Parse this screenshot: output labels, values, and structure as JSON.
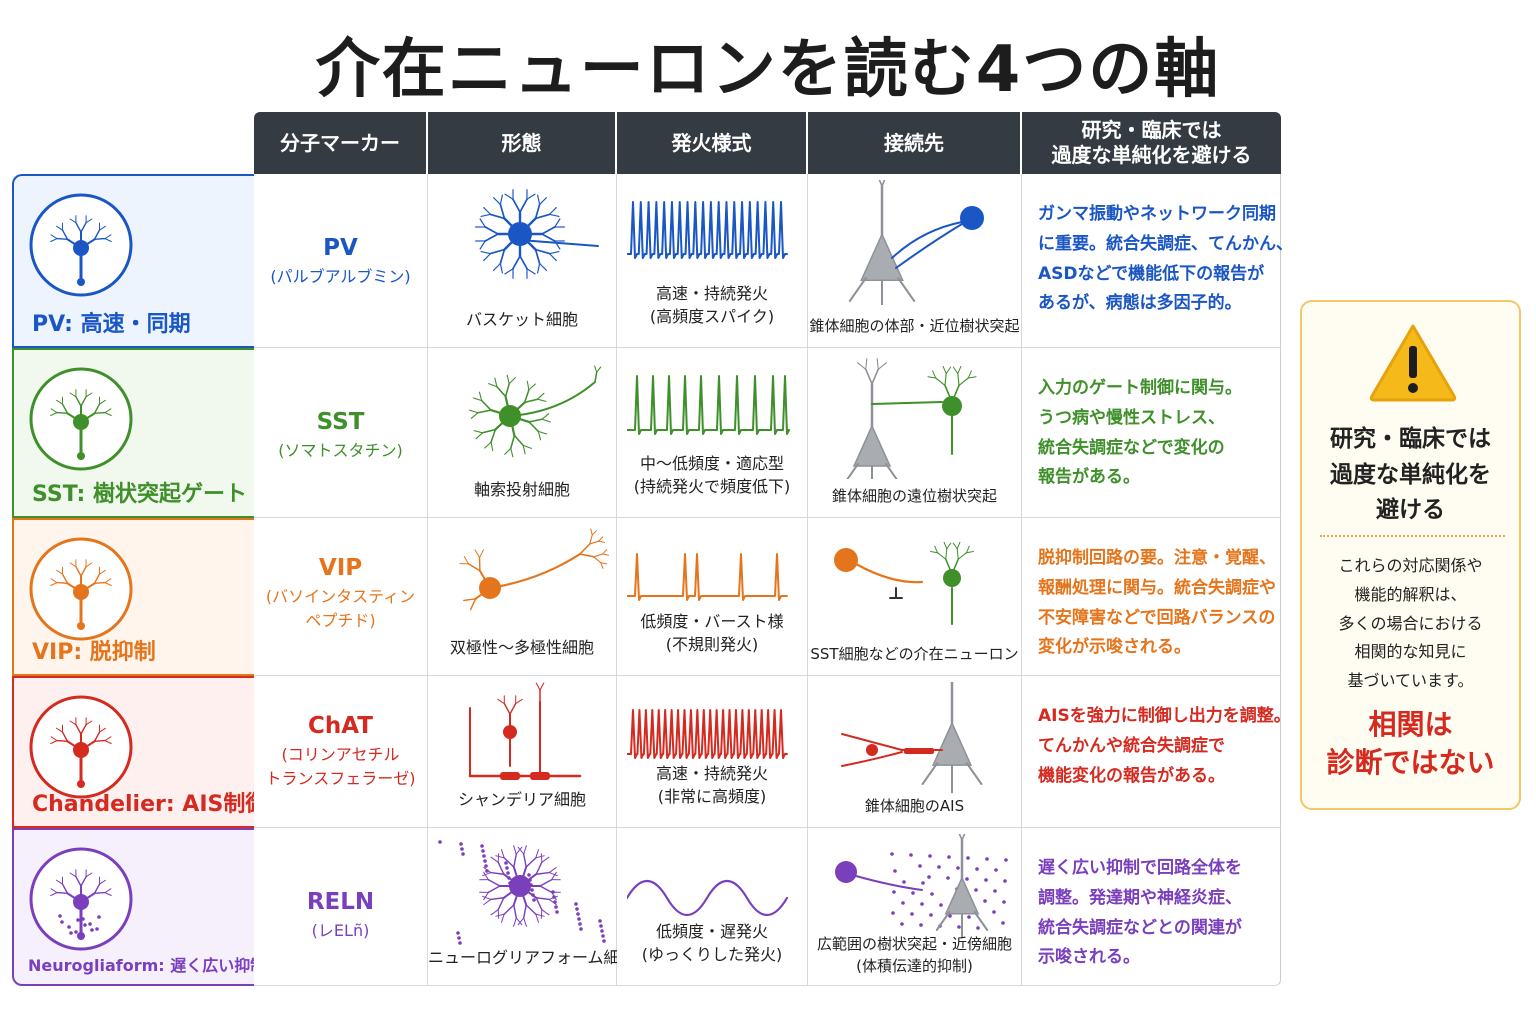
{
  "title": "介在ニューロンを読む4つの軸",
  "headers": [
    "分子マーカー",
    "形態",
    "発火様式",
    "接続先",
    "研究・臨床では\n過度な単純化を避ける"
  ],
  "rows": [
    {
      "label": "PV: 高速・同期",
      "color": "#1a56c4",
      "bg": "#eef4fd",
      "marker": "PV",
      "marker_full": "(パルブアルブミン)",
      "morph_caption": "バスケット細胞",
      "firing_caption": [
        "高速・持続発火",
        "(高頻度スパイク)"
      ],
      "target_caption": [
        "錐体細胞の体部・近位樹状突起"
      ],
      "note": [
        "ガンマ振動やネットワーク同期",
        "に重要。統合失調症、てんかん、",
        "ASDなどで機能低下の報告が",
        "あるが、病態は多因子的。"
      ]
    },
    {
      "label": "SST: 樹状突起ゲート",
      "color": "#3f8f2a",
      "bg": "#f1f8ee",
      "marker": "SST",
      "marker_full": "(ソマトスタチン)",
      "morph_caption": "軸索投射細胞",
      "firing_caption": [
        "中〜低頻度・適応型",
        "(持続発火で頻度低下)"
      ],
      "target_caption": [
        "錐体細胞の遠位樹状突起"
      ],
      "note": [
        "入力のゲート制御に関与。",
        "うつ病や慢性ストレス、",
        "統合失調症などで変化の",
        "報告がある。"
      ]
    },
    {
      "label": "VIP: 脱抑制",
      "color": "#e5751c",
      "bg": "#fff5ec",
      "marker": "VIP",
      "marker_full": "(バソインタスティン\nペプチド)",
      "morph_caption": "双極性〜多極性細胞",
      "firing_caption": [
        "低頻度・バースト様",
        "(不規則発火)"
      ],
      "target_caption": [
        "SST細胞などの介在ニューロン"
      ],
      "note": [
        "脱抑制回路の要。注意・覚醒、",
        "報酬処理に関与。統合失調症や",
        "不安障害などで回路バランスの",
        "変化が示唆される。"
      ]
    },
    {
      "label": "Chandelier: AIS制御",
      "color": "#d42a20",
      "bg": "#fdf0ef",
      "marker": "ChAT",
      "marker_full": "(コリンアセチル\nトランスフェラーゼ)",
      "morph_caption": "シャンデリア細胞",
      "firing_caption": [
        "高速・持続発火",
        "(非常に高頻度)"
      ],
      "target_caption": [
        "錐体細胞のAIS"
      ],
      "note": [
        "AISを強力に制御し出力を調整。",
        "てんかんや統合失調症で",
        "機能変化の報告がある。"
      ]
    },
    {
      "label": "Neurogliaform: 遅く広い抑制",
      "color": "#7a3fbd",
      "bg": "#f5f0fb",
      "marker": "RELN",
      "marker_full": "(レELñ)",
      "morph_caption": "ニューログリアフォーム細胞",
      "firing_caption": [
        "低頻度・遅発火",
        "(ゆっくりした発火)"
      ],
      "target_caption": [
        "広範囲の樹状突起・近傍細胞",
        "(体積伝達的抑制)"
      ],
      "note": [
        "遅く広い抑制で回路全体を",
        "調整。発達期や神経炎症、",
        "統合失調症などとの関連が",
        "示唆される。"
      ]
    }
  ],
  "warning": {
    "title": [
      "研究・臨床では",
      "過度な単純化を",
      "避ける"
    ],
    "body": [
      "これらの対応関係や",
      "機能的解釈は、",
      "多くの場合における",
      "相関的な知見に",
      "基づいています。"
    ],
    "footer": [
      "相関は",
      "診断ではない"
    ],
    "accent": "#f5b919",
    "footer_color": "#d42a20"
  }
}
